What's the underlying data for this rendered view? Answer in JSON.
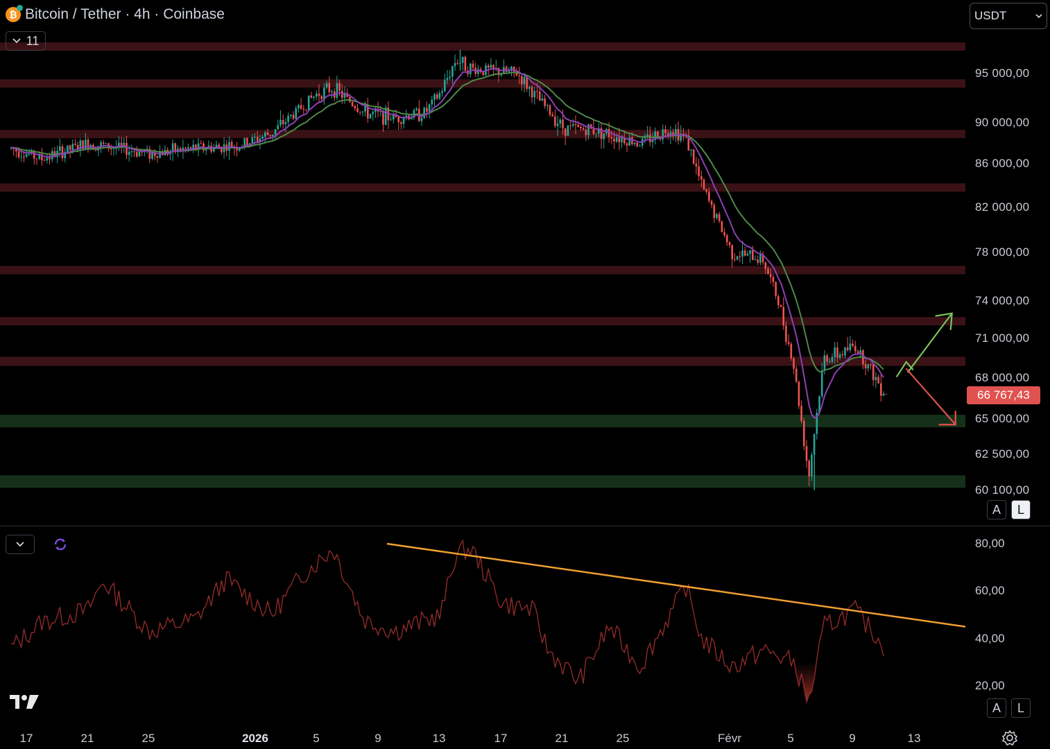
{
  "header": {
    "title": "Bitcoin / Tether · 4h · Coinbase",
    "indicator_count": "11",
    "currency": "USDT"
  },
  "price_axis": {
    "labels": [
      "95 000,00",
      "90 000,00",
      "86 000,00",
      "82 000,00",
      "78 000,00",
      "74 000,00",
      "71 000,00",
      "68 000,00",
      "65 000,00",
      "62 500,00",
      "60 100,00"
    ],
    "current_price": "66 767,43"
  },
  "scale_buttons": {
    "auto": "A",
    "log": "L"
  },
  "rsi_axis": {
    "labels": [
      "80,00",
      "60,00",
      "40,00",
      "20,00"
    ]
  },
  "time_axis": {
    "labels": [
      "17",
      "21",
      "25",
      "2026",
      "5",
      "9",
      "13",
      "17",
      "21",
      "25",
      "Févr",
      "5",
      "9",
      "13"
    ]
  },
  "colors": {
    "resistance_zone": "#3a1216",
    "support_zone": "#15301a",
    "candle_up": "#26a69a",
    "candle_down": "#ef5350",
    "ema_fast": "#8e3fb5",
    "ema_slow": "#4e8a4a",
    "rsi_line": "#8e2a2a",
    "trendline": "#f0a030",
    "arrow_up": "#7cc15a",
    "arrow_down": "#e0524f",
    "current_price_bg": "#e0524f"
  },
  "icons": {
    "symbol": "bitcoin-icon",
    "collapse": "chevron-down-icon",
    "sync": "sync-icon",
    "logo": "tradingview-logo",
    "settings": "gear-icon"
  },
  "chart_data": [
    {
      "type": "candlestick",
      "title": "Bitcoin / Tether · 4h · Coinbase",
      "x_range": [
        "2025-12-16",
        "2026-02-15"
      ],
      "x_ticks": [
        "17",
        "21",
        "25",
        "2026",
        "5",
        "9",
        "13",
        "17",
        "21",
        "25",
        "Févr",
        "5",
        "9",
        "13"
      ],
      "price_ticks": [
        95000,
        90000,
        86000,
        82000,
        78000,
        74000,
        71000,
        68000,
        65000,
        62500,
        60100
      ],
      "path_points": [
        {
          "x": "2025-12-16",
          "close": 87500
        },
        {
          "x": "2025-12-18",
          "close": 86500
        },
        {
          "x": "2025-12-21",
          "close": 88000
        },
        {
          "x": "2025-12-23",
          "close": 87500
        },
        {
          "x": "2025-12-25",
          "close": 87000
        },
        {
          "x": "2025-12-28",
          "close": 87500
        },
        {
          "x": "2025-12-31",
          "close": 87800
        },
        {
          "x": "2026-01-02",
          "close": 89000
        },
        {
          "x": "2026-01-05",
          "close": 93000
        },
        {
          "x": "2026-01-06",
          "close": 93500
        },
        {
          "x": "2026-01-08",
          "close": 91000
        },
        {
          "x": "2026-01-10",
          "close": 90500
        },
        {
          "x": "2026-01-12",
          "close": 91000
        },
        {
          "x": "2026-01-13",
          "close": 93000
        },
        {
          "x": "2026-01-14",
          "close": 96500
        },
        {
          "x": "2026-01-15",
          "close": 95500
        },
        {
          "x": "2026-01-18",
          "close": 95000
        },
        {
          "x": "2026-01-19",
          "close": 93000
        },
        {
          "x": "2026-01-21",
          "close": 89500
        },
        {
          "x": "2026-01-23",
          "close": 89300
        },
        {
          "x": "2026-01-26",
          "close": 88000
        },
        {
          "x": "2026-01-28",
          "close": 89500
        },
        {
          "x": "2026-01-29",
          "close": 88500
        },
        {
          "x": "2026-01-30",
          "close": 84000
        },
        {
          "x": "2026-02-01",
          "close": 78000
        },
        {
          "x": "2026-02-03",
          "close": 77500
        },
        {
          "x": "2026-02-04",
          "close": 74000
        },
        {
          "x": "2026-02-05",
          "close": 69000
        },
        {
          "x": "2026-02-06",
          "close": 61000
        },
        {
          "x": "2026-02-07",
          "close": 69500
        },
        {
          "x": "2026-02-08",
          "close": 69800
        },
        {
          "x": "2026-02-09",
          "close": 70500
        },
        {
          "x": "2026-02-11",
          "close": 66767.43
        }
      ],
      "low": 60100,
      "high": 97500,
      "current_price": 66767.43,
      "resistance_zones": [
        [
          97800,
          98300
        ],
        [
          93900,
          94400
        ],
        [
          88800,
          89300
        ],
        [
          83700,
          84200
        ],
        [
          76400,
          76900
        ],
        [
          72200,
          72700
        ],
        [
          68900,
          69600
        ]
      ],
      "support_zones": [
        [
          64600,
          65300
        ],
        [
          60400,
          61100
        ]
      ],
      "scenario_arrows": [
        "up",
        "down"
      ]
    },
    {
      "type": "line",
      "series_note": "RSI oscillator",
      "y_ticks": [
        80,
        60,
        40,
        20
      ],
      "points": [
        {
          "x": "2025-12-16",
          "y": 36
        },
        {
          "x": "2025-12-18",
          "y": 47
        },
        {
          "x": "2025-12-21",
          "y": 52
        },
        {
          "x": "2025-12-22",
          "y": 64
        },
        {
          "x": "2025-12-25",
          "y": 43
        },
        {
          "x": "2025-12-28",
          "y": 48
        },
        {
          "x": "2025-12-30",
          "y": 65
        },
        {
          "x": "2026-01-02",
          "y": 50
        },
        {
          "x": "2026-01-04",
          "y": 67
        },
        {
          "x": "2026-01-06",
          "y": 78
        },
        {
          "x": "2026-01-08",
          "y": 48
        },
        {
          "x": "2026-01-10",
          "y": 43
        },
        {
          "x": "2026-01-13",
          "y": 50
        },
        {
          "x": "2026-01-14",
          "y": 76
        },
        {
          "x": "2026-01-15",
          "y": 78
        },
        {
          "x": "2026-01-17",
          "y": 55
        },
        {
          "x": "2026-01-19",
          "y": 52
        },
        {
          "x": "2026-01-20",
          "y": 35
        },
        {
          "x": "2026-01-22",
          "y": 22
        },
        {
          "x": "2026-01-24",
          "y": 45
        },
        {
          "x": "2026-01-26",
          "y": 28
        },
        {
          "x": "2026-01-29",
          "y": 62
        },
        {
          "x": "2026-01-30",
          "y": 40
        },
        {
          "x": "2026-02-01",
          "y": 28
        },
        {
          "x": "2026-02-03",
          "y": 35
        },
        {
          "x": "2026-02-05",
          "y": 30
        },
        {
          "x": "2026-02-06",
          "y": 13
        },
        {
          "x": "2026-02-07",
          "y": 45
        },
        {
          "x": "2026-02-09",
          "y": 52
        },
        {
          "x": "2026-02-10",
          "y": 44
        },
        {
          "x": "2026-02-11",
          "y": 36
        }
      ],
      "trendline": [
        {
          "x": "2026-01-10",
          "y": 80
        },
        {
          "x": "2026-02-15",
          "y": 45
        }
      ]
    }
  ]
}
